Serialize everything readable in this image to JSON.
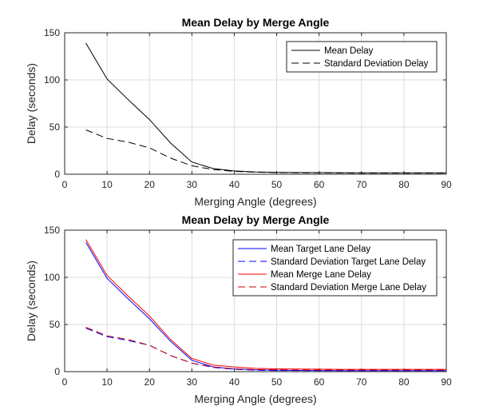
{
  "chart_data": [
    {
      "type": "line",
      "title": "Mean Delay by Merge Angle",
      "xlabel": "Merging Angle (degrees)",
      "ylabel": "Delay (seconds)",
      "xlim": [
        0,
        90
      ],
      "ylim": [
        0,
        150
      ],
      "xticks": [
        0,
        10,
        20,
        30,
        40,
        50,
        60,
        70,
        80,
        90
      ],
      "yticks": [
        0,
        50,
        100,
        150
      ],
      "grid": true,
      "legend": "top-right",
      "x": [
        5,
        10,
        15,
        20,
        25,
        30,
        35,
        40,
        45,
        50,
        55,
        60,
        65,
        70,
        75,
        80,
        85,
        90
      ],
      "series": [
        {
          "name": "Mean Delay",
          "color": "#000000",
          "dash": "solid",
          "values": [
            139,
            101,
            79,
            58,
            33,
            13,
            6,
            3.5,
            2.5,
            2,
            1.8,
            1.7,
            1.6,
            1.5,
            1.5,
            1.5,
            1.5,
            1.5
          ]
        },
        {
          "name": "Standard Deviation Delay",
          "color": "#000000",
          "dash": "dashed",
          "values": [
            47,
            38,
            34,
            28,
            17,
            9,
            5,
            3,
            2.2,
            1.8,
            1.5,
            1.4,
            1.3,
            1.2,
            1.2,
            1.2,
            1.2,
            1.2
          ]
        }
      ]
    },
    {
      "type": "line",
      "title": "Mean Delay by Merge Angle",
      "xlabel": "Merging Angle (degrees)",
      "ylabel": "Delay (seconds)",
      "xlim": [
        0,
        90
      ],
      "ylim": [
        0,
        150
      ],
      "xticks": [
        0,
        10,
        20,
        30,
        40,
        50,
        60,
        70,
        80,
        90
      ],
      "yticks": [
        0,
        50,
        100,
        150
      ],
      "grid": true,
      "legend": "top-right",
      "x": [
        5,
        10,
        15,
        20,
        25,
        30,
        35,
        40,
        45,
        50,
        55,
        60,
        65,
        70,
        75,
        80,
        85,
        90
      ],
      "series": [
        {
          "name": "Mean Target Lane Delay",
          "color": "#0000ff",
          "dash": "solid",
          "values": [
            137,
            99,
            77,
            56,
            32,
            12,
            5,
            3,
            2,
            1.5,
            1.3,
            1.2,
            1.1,
            1,
            1,
            1,
            1,
            1
          ]
        },
        {
          "name": "Standard Deviation Target Lane Delay",
          "color": "#0000ff",
          "dash": "dashed",
          "values": [
            46,
            37,
            33,
            28,
            17,
            9,
            4.5,
            2.5,
            1.5,
            1.2,
            1.1,
            1,
            1,
            1,
            1,
            1,
            1,
            1
          ]
        },
        {
          "name": "Mean Merge Lane Delay",
          "color": "#ff0000",
          "dash": "solid",
          "values": [
            140,
            102,
            80,
            59,
            34,
            14,
            7,
            5,
            3.5,
            3,
            2.8,
            2.6,
            2.5,
            2.5,
            2.5,
            2.5,
            2.5,
            2.5
          ]
        },
        {
          "name": "Standard Deviation Merge Lane Delay",
          "color": "#cc0000",
          "dash": "dashed",
          "values": [
            47,
            38,
            34,
            28,
            17,
            9,
            5,
            3,
            2.2,
            2,
            1.8,
            1.8,
            1.8,
            1.8,
            1.8,
            1.8,
            1.8,
            1.8
          ]
        }
      ]
    }
  ]
}
